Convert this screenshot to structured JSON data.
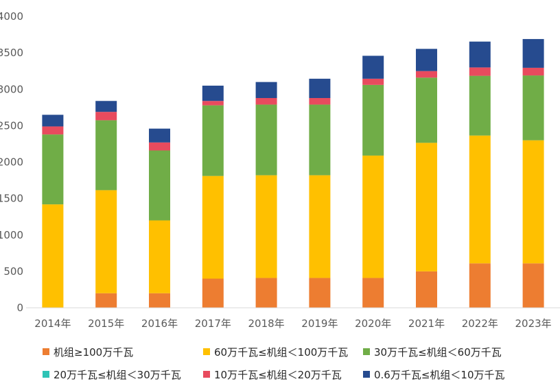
{
  "chart_data": {
    "type": "bar",
    "stacked": true,
    "categories": [
      "2014年",
      "2015年",
      "2016年",
      "2017年",
      "2018年",
      "2019年",
      "2020年",
      "2021年",
      "2022年",
      "2023年"
    ],
    "series": [
      {
        "name": "机组≥100万千瓦",
        "color": "#ED7D31",
        "values": [
          0,
          200,
          200,
          400,
          410,
          410,
          410,
          500,
          610,
          610
        ]
      },
      {
        "name": "60万千瓦≤机组＜100万千瓦",
        "color": "#FFC000",
        "values": [
          1420,
          1415,
          1000,
          1410,
          1410,
          1410,
          1680,
          1765,
          1755,
          1690
        ]
      },
      {
        "name": "30万千瓦≤机组＜60万千瓦",
        "color": "#70AD47",
        "values": [
          960,
          960,
          960,
          970,
          970,
          970,
          970,
          895,
          820,
          890
        ]
      },
      {
        "name": "20万千瓦≤机组＜30万千瓦",
        "color": "#2EC4B6",
        "values": [
          0,
          0,
          0,
          0,
          0,
          0,
          0,
          0,
          0,
          0
        ]
      },
      {
        "name": "10万千瓦≤机组＜20万千瓦",
        "color": "#E84B5E",
        "values": [
          110,
          115,
          110,
          60,
          90,
          90,
          85,
          90,
          115,
          105
        ]
      },
      {
        "name": "0.6万千瓦≤机组＜10万千瓦",
        "color": "#264B8F",
        "values": [
          160,
          150,
          190,
          210,
          220,
          265,
          315,
          305,
          355,
          395
        ]
      }
    ],
    "ylim": [
      0,
      4000
    ],
    "yticks": [
      0,
      500,
      1000,
      1500,
      2000,
      2500,
      3000,
      3500,
      4000
    ],
    "ytick_labels": [
      "0",
      "500",
      "1000",
      "1500",
      "2000",
      "2500",
      "3000",
      "3500",
      "4000"
    ],
    "grid": false,
    "legend_position": "bottom"
  }
}
